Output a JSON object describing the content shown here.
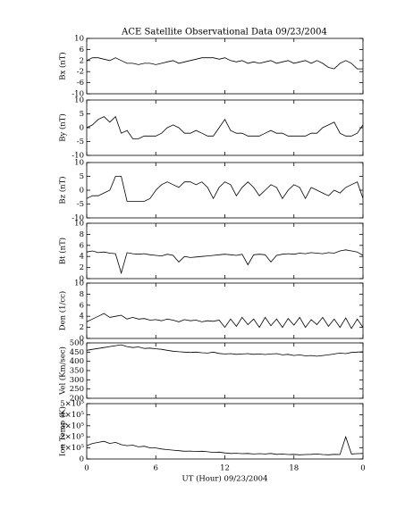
{
  "chart_data": [
    {
      "type": "line",
      "title": "ACE Satellite Observational Data   09/23/2004",
      "ylabel": "Bx (nT)",
      "color": "#000000",
      "xlim": [
        0,
        24
      ],
      "ylim": [
        -10,
        10
      ],
      "yticks": [
        -10,
        -6,
        -2,
        2,
        6,
        10
      ],
      "x": [
        0,
        0.5,
        1,
        1.5,
        2,
        2.5,
        3,
        3.5,
        4,
        4.5,
        5,
        5.5,
        6,
        6.5,
        7,
        7.5,
        8,
        8.5,
        9,
        9.5,
        10,
        10.5,
        11,
        11.5,
        12,
        12.5,
        13,
        13.5,
        14,
        14.5,
        15,
        15.5,
        16,
        16.5,
        17,
        17.5,
        18,
        18.5,
        19,
        19.5,
        20,
        20.5,
        21,
        21.5,
        22,
        22.5,
        23,
        23.5,
        24
      ],
      "values": [
        2,
        3,
        3,
        2.5,
        2,
        3,
        2,
        1,
        1,
        0.5,
        1,
        1,
        0.5,
        1,
        1.5,
        2,
        1,
        1.5,
        2,
        2.5,
        3,
        3,
        3,
        2.5,
        3,
        2,
        1.5,
        2,
        1,
        1.5,
        1,
        1.5,
        2,
        1,
        1.5,
        2,
        1,
        1.5,
        2,
        1,
        2,
        1,
        -0.5,
        -1,
        1,
        2,
        1,
        -1,
        -1
      ]
    },
    {
      "type": "line",
      "ylabel": "By (nT)",
      "color": "#000000",
      "xlim": [
        0,
        24
      ],
      "ylim": [
        -10,
        10
      ],
      "yticks": [
        -10,
        -5,
        0,
        5,
        10
      ],
      "x": [
        0,
        0.5,
        1,
        1.5,
        2,
        2.5,
        3,
        3.5,
        4,
        4.5,
        5,
        5.5,
        6,
        6.5,
        7,
        7.5,
        8,
        8.5,
        9,
        9.5,
        10,
        10.5,
        11,
        11.5,
        12,
        12.5,
        13,
        13.5,
        14,
        14.5,
        15,
        15.5,
        16,
        16.5,
        17,
        17.5,
        18,
        18.5,
        19,
        19.5,
        20,
        20.5,
        21,
        21.5,
        22,
        22.5,
        23,
        23.5,
        24
      ],
      "values": [
        0,
        1,
        3,
        4,
        2,
        4,
        -2,
        -1,
        -4,
        -4,
        -3,
        -3,
        -3,
        -2,
        0,
        1,
        0,
        -2,
        -2,
        -1,
        -2,
        -3,
        -3,
        0,
        3,
        -1,
        -2,
        -2,
        -3,
        -3,
        -3,
        -2,
        -1,
        -2,
        -2,
        -3,
        -3,
        -3,
        -3,
        -2,
        -2,
        0,
        1,
        2,
        -2,
        -3,
        -3,
        -2,
        1
      ]
    },
    {
      "type": "line",
      "ylabel": "Bz (nT)",
      "color": "#000000",
      "xlim": [
        0,
        24
      ],
      "ylim": [
        -10,
        10
      ],
      "yticks": [
        -10,
        -5,
        0,
        5,
        10
      ],
      "x": [
        0,
        0.5,
        1,
        1.5,
        2,
        2.5,
        3,
        3.5,
        4,
        4.5,
        5,
        5.5,
        6,
        6.5,
        7,
        7.5,
        8,
        8.5,
        9,
        9.5,
        10,
        10.5,
        11,
        11.5,
        12,
        12.5,
        13,
        13.5,
        14,
        14.5,
        15,
        15.5,
        16,
        16.5,
        17,
        17.5,
        18,
        18.5,
        19,
        19.5,
        20,
        20.5,
        21,
        21.5,
        22,
        22.5,
        23,
        23.5,
        24
      ],
      "values": [
        -3,
        -2,
        -2,
        -1,
        0,
        5,
        5,
        -4,
        -4,
        -4,
        -4,
        -3,
        0,
        2,
        3,
        2,
        1,
        3,
        3,
        2,
        3,
        1,
        -3,
        1,
        3,
        2,
        -2,
        1,
        3,
        1,
        -2,
        0,
        2,
        1,
        -3,
        0,
        2,
        1,
        -3,
        1,
        0,
        -1,
        -2,
        0,
        -1,
        1,
        2,
        3,
        -3
      ]
    },
    {
      "type": "line",
      "ylabel": "Bt (nT)",
      "color": "#000000",
      "xlim": [
        0,
        24
      ],
      "ylim": [
        0,
        10
      ],
      "yticks": [
        0,
        2,
        4,
        6,
        8,
        10
      ],
      "x": [
        0,
        0.5,
        1,
        1.5,
        2,
        2.5,
        3,
        3.5,
        4,
        4.5,
        5,
        5.5,
        6,
        6.5,
        7,
        7.5,
        8,
        8.5,
        9,
        9.5,
        10,
        10.5,
        11,
        11.5,
        12,
        12.5,
        13,
        13.5,
        14,
        14.5,
        15,
        15.5,
        16,
        16.5,
        17,
        17.5,
        18,
        18.5,
        19,
        19.5,
        20,
        20.5,
        21,
        21.5,
        22,
        22.5,
        23,
        23.5,
        24
      ],
      "values": [
        4.8,
        5,
        4.7,
        4.8,
        4.6,
        4.5,
        1,
        4.7,
        4.5,
        4.4,
        4.5,
        4.3,
        4.2,
        4.1,
        4.4,
        4.2,
        3,
        4,
        3.8,
        3.9,
        4,
        4.1,
        4.2,
        4.3,
        4.4,
        4.3,
        4.2,
        4.4,
        2.5,
        4.3,
        4.4,
        4.3,
        3,
        4.2,
        4.4,
        4.5,
        4.4,
        4.6,
        4.5,
        4.7,
        4.6,
        4.5,
        4.7,
        4.6,
        5,
        5.2,
        5,
        4.8,
        4.2
      ]
    },
    {
      "type": "line",
      "ylabel": "Den (1/cc)",
      "color": "#000000",
      "xlim": [
        0,
        24
      ],
      "ylim": [
        0,
        10
      ],
      "yticks": [
        0,
        2,
        4,
        6,
        8,
        10
      ],
      "x": [
        0,
        0.5,
        1,
        1.5,
        2,
        2.5,
        3,
        3.5,
        4,
        4.5,
        5,
        5.5,
        6,
        6.5,
        7,
        7.5,
        8,
        8.5,
        9,
        9.5,
        10,
        10.5,
        11,
        11.5,
        12,
        12.5,
        13,
        13.5,
        14,
        14.5,
        15,
        15.5,
        16,
        16.5,
        17,
        17.5,
        18,
        18.5,
        19,
        19.5,
        20,
        20.5,
        21,
        21.5,
        22,
        22.5,
        23,
        23.5,
        24
      ],
      "values": [
        3,
        3.5,
        4,
        4.5,
        3.8,
        4,
        4.2,
        3.5,
        3.8,
        3.5,
        3.6,
        3.3,
        3.4,
        3.2,
        3.5,
        3.3,
        3,
        3.4,
        3.2,
        3.3,
        3,
        3.2,
        3.1,
        3.3,
        2,
        3.5,
        2.2,
        3.8,
        2.5,
        3.5,
        2,
        3.8,
        2.3,
        3.5,
        2,
        3.6,
        2.4,
        3.8,
        2,
        3.4,
        2.5,
        3.8,
        2.2,
        3.5,
        2,
        3.7,
        1.8,
        3.5,
        2
      ]
    },
    {
      "type": "line",
      "ylabel": "Vel (Km/sec)",
      "color": "#000000",
      "xlim": [
        0,
        24
      ],
      "ylim": [
        200,
        500
      ],
      "yticks": [
        200,
        250,
        300,
        350,
        400,
        450,
        500
      ],
      "x": [
        0,
        0.5,
        1,
        1.5,
        2,
        2.5,
        3,
        3.5,
        4,
        4.5,
        5,
        5.5,
        6,
        6.5,
        7,
        7.5,
        8,
        8.5,
        9,
        9.5,
        10,
        10.5,
        11,
        11.5,
        12,
        12.5,
        13,
        13.5,
        14,
        14.5,
        15,
        15.5,
        16,
        16.5,
        17,
        17.5,
        18,
        18.5,
        19,
        19.5,
        20,
        20.5,
        21,
        21.5,
        22,
        22.5,
        23,
        23.5,
        24
      ],
      "values": [
        460,
        465,
        470,
        475,
        480,
        485,
        490,
        480,
        475,
        478,
        470,
        472,
        468,
        465,
        460,
        455,
        452,
        450,
        448,
        450,
        447,
        445,
        450,
        443,
        440,
        442,
        438,
        440,
        442,
        438,
        440,
        437,
        440,
        442,
        435,
        438,
        432,
        435,
        430,
        432,
        428,
        432,
        435,
        440,
        445,
        442,
        448,
        450,
        452
      ]
    },
    {
      "type": "line",
      "ylabel": "Ion Temp (K)",
      "xlabel": "UT (Hour)  09/23/2004",
      "color": "#000000",
      "xlim": [
        0,
        24
      ],
      "xticks": [
        0,
        6,
        12,
        18,
        {
          "value": 24,
          "label": "0"
        }
      ],
      "ylim": [
        0,
        500000
      ],
      "yticks": [
        0,
        {
          "value": 100000,
          "label": "1×10⁵"
        },
        {
          "value": 200000,
          "label": "2×10⁵"
        },
        {
          "value": 300000,
          "label": "3×10⁵"
        },
        {
          "value": 400000,
          "label": "4×10⁵"
        },
        {
          "value": 500000,
          "label": "5×10⁵"
        }
      ],
      "x": [
        0,
        0.5,
        1,
        1.5,
        2,
        2.5,
        3,
        3.5,
        4,
        4.5,
        5,
        5.5,
        6,
        6.5,
        7,
        7.5,
        8,
        8.5,
        9,
        9.5,
        10,
        10.5,
        11,
        11.5,
        12,
        12.5,
        13,
        13.5,
        14,
        14.5,
        15,
        15.5,
        16,
        16.5,
        17,
        17.5,
        18,
        18.5,
        19,
        19.5,
        20,
        20.5,
        21,
        21.5,
        22,
        22.5,
        23,
        23.5,
        24
      ],
      "values": [
        120000,
        140000,
        150000,
        160000,
        140000,
        150000,
        130000,
        120000,
        125000,
        110000,
        115000,
        100000,
        100000,
        90000,
        85000,
        80000,
        75000,
        70000,
        72000,
        68000,
        70000,
        65000,
        60000,
        62000,
        55000,
        50000,
        52000,
        48000,
        50000,
        45000,
        48000,
        45000,
        50000,
        42000,
        45000,
        40000,
        42000,
        38000,
        40000,
        42000,
        45000,
        40000,
        38000,
        42000,
        40000,
        200000,
        45000,
        48000,
        50000
      ]
    }
  ]
}
